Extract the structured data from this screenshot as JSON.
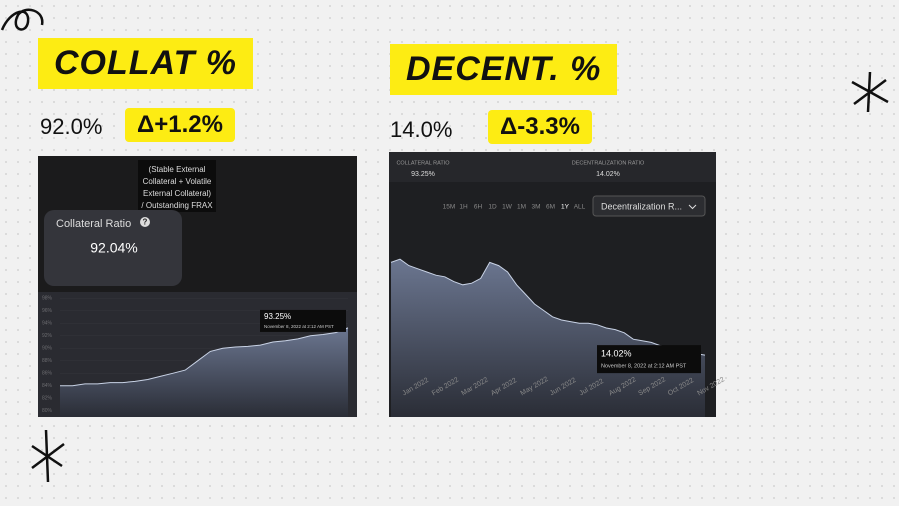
{
  "slide": {
    "left": {
      "heading": "COLLAT %",
      "value": "92.0%",
      "delta": "Δ+1.2%"
    },
    "right": {
      "heading": "DECENT. %",
      "value": "14.0%",
      "delta": "Δ-3.3%"
    }
  },
  "chart_data": [
    {
      "type": "area",
      "formula_tooltip": [
        "(Stable External",
        "Collateral + Volatile",
        "External Collateral)",
        "/ Outstanding FRAX"
      ],
      "card_title": "Collateral Ratio",
      "card_help": "?",
      "card_value": "92.04%",
      "hover_value": "93.25%",
      "hover_date": "November 8, 2022 at 2:12 AM PST",
      "ylim": [
        79,
        99
      ],
      "yticks": [
        {
          "value": 98,
          "label": "98%"
        },
        {
          "value": 96,
          "label": "96%"
        },
        {
          "value": 94,
          "label": "94%"
        },
        {
          "value": 92,
          "label": "92%"
        },
        {
          "value": 90,
          "label": "90%"
        },
        {
          "value": 88,
          "label": "88%"
        },
        {
          "value": 86,
          "label": "86%"
        },
        {
          "value": 84,
          "label": "84%"
        },
        {
          "value": 82,
          "label": "82%"
        },
        {
          "value": 80,
          "label": "80%"
        }
      ],
      "color": "#c9d3e6",
      "values": [
        84,
        84,
        84.3,
        84.3,
        84.5,
        84.5,
        84.7,
        85,
        85.5,
        86,
        86.5,
        88,
        89.5,
        90,
        90.2,
        90.3,
        90.5,
        91,
        91.2,
        91.5,
        92,
        92.2,
        92.5,
        93.25
      ]
    },
    {
      "type": "area",
      "stats": [
        {
          "label": "COLLATERAL RATIO",
          "value": "93.25%"
        },
        {
          "label": "DECENTRALIZATION RATIO",
          "value": "14.02%"
        }
      ],
      "ranges": [
        "15M",
        "1H",
        "6H",
        "1D",
        "1W",
        "1M",
        "3M",
        "6M",
        "1Y",
        "ALL"
      ],
      "dropdown": "Decentralization R...",
      "hover_value": "14.02%",
      "hover_date": "November 8, 2022 at 2:12 AM PST",
      "x_labels": [
        "Jan 2022",
        "Feb 2022",
        "Mar 2022",
        "Apr 2022",
        "May 2022",
        "Jun 2022",
        "Jul 2022",
        "Aug 2022",
        "Sep 2022",
        "Oct 2022",
        "Nov 2022"
      ],
      "ylim": [
        0,
        50
      ],
      "color": "#c9d3e6",
      "values": [
        43,
        44,
        42,
        41,
        40,
        39,
        38.5,
        37,
        36,
        36.5,
        38,
        43,
        42,
        40,
        36,
        33,
        30,
        28,
        26,
        25,
        24.5,
        24,
        24,
        23.5,
        22.5,
        22,
        21,
        19,
        18.5,
        18,
        17,
        16.5,
        15,
        14,
        14.5,
        14.02
      ]
    }
  ]
}
